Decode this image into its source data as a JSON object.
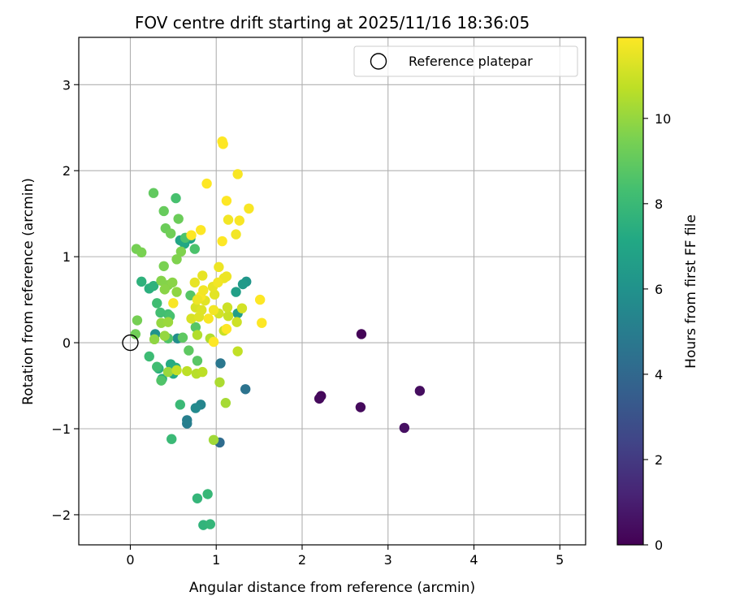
{
  "chart_data": {
    "type": "scatter",
    "title": "FOV centre drift starting at 2025/11/16 18:36:05",
    "xlabel": "Angular distance from reference (arcmin)",
    "ylabel": "Rotation from reference (arcmin)",
    "xlim": [
      -0.6,
      5.3
    ],
    "ylim": [
      -2.35,
      3.55
    ],
    "xticks": [
      0,
      1,
      2,
      3,
      4,
      5
    ],
    "xtick_labels": [
      "0",
      "1",
      "2",
      "3",
      "4",
      "5"
    ],
    "yticks": [
      -2,
      -1,
      0,
      1,
      2,
      3
    ],
    "ytick_labels": [
      "−2",
      "−1",
      "0",
      "1",
      "2",
      "3"
    ],
    "grid": true,
    "legend": {
      "label": "Reference platepar",
      "location": "upper right"
    },
    "reference": {
      "x": 0,
      "y": 0
    },
    "colorbar": {
      "label": "Hours from first FF file",
      "colormap": "viridis",
      "range": [
        0,
        11.9
      ],
      "ticks": [
        0,
        2,
        4,
        6,
        8,
        10
      ],
      "tick_labels": [
        "0",
        "2",
        "4",
        "6",
        "8",
        "10"
      ]
    },
    "points": [
      {
        "x": 2.69,
        "y": 0.1,
        "t": 0.1
      },
      {
        "x": 2.22,
        "y": -0.62,
        "t": 0.2
      },
      {
        "x": 2.2,
        "y": -0.65,
        "t": 0.3
      },
      {
        "x": 2.68,
        "y": -0.75,
        "t": 0.3
      },
      {
        "x": 3.37,
        "y": -0.56,
        "t": 0.4
      },
      {
        "x": 3.19,
        "y": -0.99,
        "t": 0.5
      },
      {
        "x": 1.04,
        "y": -1.16,
        "t": 4.2
      },
      {
        "x": 1.34,
        "y": -0.54,
        "t": 4.5
      },
      {
        "x": 1.05,
        "y": -0.24,
        "t": 4.7
      },
      {
        "x": 0.66,
        "y": -0.94,
        "t": 5.0
      },
      {
        "x": 0.66,
        "y": -0.9,
        "t": 5.1
      },
      {
        "x": 0.82,
        "y": -0.72,
        "t": 5.4
      },
      {
        "x": 0.76,
        "y": -0.76,
        "t": 5.6
      },
      {
        "x": 0.55,
        "y": 0.05,
        "t": 5.8
      },
      {
        "x": 0.29,
        "y": 0.1,
        "t": 6.0
      },
      {
        "x": 1.35,
        "y": 0.71,
        "t": 6.2
      },
      {
        "x": 1.31,
        "y": 0.68,
        "t": 6.4
      },
      {
        "x": 1.25,
        "y": 0.34,
        "t": 6.6
      },
      {
        "x": 1.23,
        "y": 0.59,
        "t": 6.7
      },
      {
        "x": 0.7,
        "y": 1.21,
        "t": 6.9
      },
      {
        "x": 0.58,
        "y": 1.19,
        "t": 7.0
      },
      {
        "x": 0.63,
        "y": 1.15,
        "t": 7.1
      },
      {
        "x": 0.5,
        "y": -0.36,
        "t": 7.2
      },
      {
        "x": 0.37,
        "y": -0.42,
        "t": 7.3
      },
      {
        "x": 0.47,
        "y": -0.25,
        "t": 7.3
      },
      {
        "x": 0.53,
        "y": -0.29,
        "t": 7.4
      },
      {
        "x": 0.33,
        "y": -0.3,
        "t": 7.5
      },
      {
        "x": 0.22,
        "y": 0.63,
        "t": 7.5
      },
      {
        "x": 0.27,
        "y": 0.66,
        "t": 7.6
      },
      {
        "x": 0.13,
        "y": 0.71,
        "t": 7.6
      },
      {
        "x": 0.85,
        "y": -2.12,
        "t": 7.7
      },
      {
        "x": 0.93,
        "y": -2.11,
        "t": 7.8
      },
      {
        "x": 0.78,
        "y": -1.81,
        "t": 7.8
      },
      {
        "x": 0.9,
        "y": -1.76,
        "t": 7.9
      },
      {
        "x": 0.48,
        "y": -1.12,
        "t": 8.0
      },
      {
        "x": 0.58,
        "y": -0.72,
        "t": 8.0
      },
      {
        "x": 0.22,
        "y": -0.16,
        "t": 8.1
      },
      {
        "x": 0.31,
        "y": -0.28,
        "t": 8.2
      },
      {
        "x": 0.31,
        "y": 0.46,
        "t": 8.2
      },
      {
        "x": 0.35,
        "y": 0.35,
        "t": 8.3
      },
      {
        "x": 0.44,
        "y": 0.33,
        "t": 8.3
      },
      {
        "x": 0.46,
        "y": 0.31,
        "t": 8.4
      },
      {
        "x": 0.53,
        "y": 1.68,
        "t": 8.4
      },
      {
        "x": 0.75,
        "y": 1.09,
        "t": 8.5
      },
      {
        "x": 0.64,
        "y": 1.22,
        "t": 8.5
      },
      {
        "x": 0.44,
        "y": 0.05,
        "t": 8.6
      },
      {
        "x": 0.36,
        "y": -0.44,
        "t": 8.6
      },
      {
        "x": 0.7,
        "y": 0.55,
        "t": 8.7
      },
      {
        "x": 0.76,
        "y": 0.18,
        "t": 8.7
      },
      {
        "x": 0.78,
        "y": -0.21,
        "t": 8.8
      },
      {
        "x": 0.61,
        "y": 0.06,
        "t": 8.9
      },
      {
        "x": 0.68,
        "y": -0.09,
        "t": 8.9
      },
      {
        "x": 0.27,
        "y": 1.74,
        "t": 9.0
      },
      {
        "x": 0.39,
        "y": 1.53,
        "t": 9.1
      },
      {
        "x": 0.56,
        "y": 1.44,
        "t": 9.2
      },
      {
        "x": 0.41,
        "y": 1.33,
        "t": 9.2
      },
      {
        "x": 0.47,
        "y": 1.27,
        "t": 9.3
      },
      {
        "x": 0.06,
        "y": 0.1,
        "t": 9.3
      },
      {
        "x": 0.08,
        "y": 0.26,
        "t": 9.4
      },
      {
        "x": 0.07,
        "y": 1.09,
        "t": 9.4
      },
      {
        "x": 0.13,
        "y": 1.05,
        "t": 9.5
      },
      {
        "x": 0.39,
        "y": 0.89,
        "t": 9.5
      },
      {
        "x": 0.54,
        "y": 0.97,
        "t": 9.6
      },
      {
        "x": 0.59,
        "y": 1.06,
        "t": 9.6
      },
      {
        "x": 0.36,
        "y": 0.72,
        "t": 9.7
      },
      {
        "x": 0.44,
        "y": 0.67,
        "t": 9.7
      },
      {
        "x": 0.49,
        "y": 0.7,
        "t": 9.8
      },
      {
        "x": 0.4,
        "y": 0.62,
        "t": 9.8
      },
      {
        "x": 0.54,
        "y": 0.59,
        "t": 9.9
      },
      {
        "x": 0.28,
        "y": 0.04,
        "t": 9.9
      },
      {
        "x": 0.4,
        "y": 0.08,
        "t": 10.0
      },
      {
        "x": 0.36,
        "y": 0.23,
        "t": 10.0
      },
      {
        "x": 0.44,
        "y": 0.24,
        "t": 10.1
      },
      {
        "x": 0.44,
        "y": -0.34,
        "t": 10.1
      },
      {
        "x": 0.97,
        "y": -1.13,
        "t": 10.2
      },
      {
        "x": 1.11,
        "y": -0.7,
        "t": 10.3
      },
      {
        "x": 1.04,
        "y": -0.46,
        "t": 10.4
      },
      {
        "x": 0.93,
        "y": 0.05,
        "t": 10.5
      },
      {
        "x": 0.78,
        "y": 0.09,
        "t": 10.5
      },
      {
        "x": 0.77,
        "y": -0.36,
        "t": 10.6
      },
      {
        "x": 0.66,
        "y": -0.33,
        "t": 10.7
      },
      {
        "x": 0.84,
        "y": -0.34,
        "t": 10.7
      },
      {
        "x": 0.54,
        "y": -0.32,
        "t": 10.8
      },
      {
        "x": 1.25,
        "y": -0.1,
        "t": 10.8
      },
      {
        "x": 1.09,
        "y": 0.14,
        "t": 10.9
      },
      {
        "x": 1.14,
        "y": 0.31,
        "t": 10.9
      },
      {
        "x": 1.24,
        "y": 0.24,
        "t": 11.0
      },
      {
        "x": 1.13,
        "y": 0.41,
        "t": 11.0
      },
      {
        "x": 1.3,
        "y": 0.4,
        "t": 11.1
      },
      {
        "x": 1.03,
        "y": 0.34,
        "t": 11.1
      },
      {
        "x": 0.71,
        "y": 0.28,
        "t": 11.2
      },
      {
        "x": 0.76,
        "y": 0.41,
        "t": 11.2
      },
      {
        "x": 0.8,
        "y": 0.3,
        "t": 11.3
      },
      {
        "x": 0.83,
        "y": 0.38,
        "t": 11.3
      },
      {
        "x": 0.98,
        "y": 0.56,
        "t": 11.4
      },
      {
        "x": 0.87,
        "y": 0.49,
        "t": 11.4
      },
      {
        "x": 0.75,
        "y": 0.7,
        "t": 11.5
      },
      {
        "x": 0.84,
        "y": 0.78,
        "t": 11.5
      },
      {
        "x": 0.96,
        "y": 0.65,
        "t": 11.5
      },
      {
        "x": 1.09,
        "y": 0.75,
        "t": 11.6
      },
      {
        "x": 1.03,
        "y": 0.88,
        "t": 11.6
      },
      {
        "x": 1.12,
        "y": 0.77,
        "t": 11.6
      },
      {
        "x": 1.02,
        "y": 0.7,
        "t": 11.7
      },
      {
        "x": 1.14,
        "y": 1.43,
        "t": 11.7
      },
      {
        "x": 1.23,
        "y": 1.26,
        "t": 11.7
      },
      {
        "x": 1.27,
        "y": 1.42,
        "t": 11.8
      },
      {
        "x": 1.38,
        "y": 1.56,
        "t": 11.8
      },
      {
        "x": 1.25,
        "y": 1.96,
        "t": 11.8
      },
      {
        "x": 0.89,
        "y": 1.85,
        "t": 11.9
      },
      {
        "x": 1.08,
        "y": 2.31,
        "t": 11.9
      },
      {
        "x": 1.07,
        "y": 2.34,
        "t": 11.9
      },
      {
        "x": 1.12,
        "y": 1.65,
        "t": 11.9
      },
      {
        "x": 1.07,
        "y": 1.18,
        "t": 11.9
      },
      {
        "x": 0.82,
        "y": 1.31,
        "t": 11.9
      },
      {
        "x": 0.71,
        "y": 1.25,
        "t": 11.9
      },
      {
        "x": 1.51,
        "y": 0.5,
        "t": 11.9
      },
      {
        "x": 1.53,
        "y": 0.23,
        "t": 11.9
      },
      {
        "x": 1.12,
        "y": 0.16,
        "t": 11.9
      },
      {
        "x": 0.97,
        "y": 0.01,
        "t": 11.9
      },
      {
        "x": 0.91,
        "y": 0.28,
        "t": 11.8
      },
      {
        "x": 0.5,
        "y": 0.46,
        "t": 11.8
      },
      {
        "x": 0.82,
        "y": 0.54,
        "t": 11.8
      },
      {
        "x": 0.97,
        "y": 0.38,
        "t": 11.7
      },
      {
        "x": 0.85,
        "y": 0.61,
        "t": 11.7
      },
      {
        "x": 0.78,
        "y": 0.5,
        "t": 11.6
      }
    ]
  }
}
